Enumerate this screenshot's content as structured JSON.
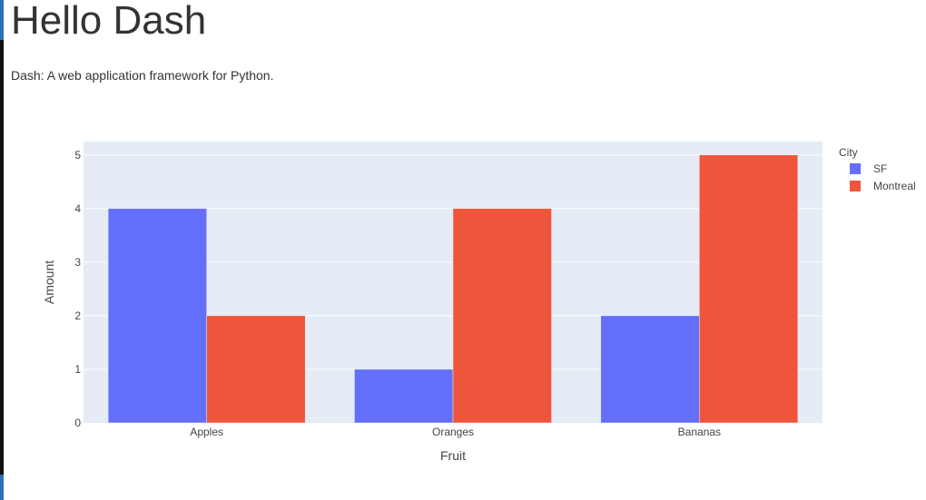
{
  "header": {
    "title": "Hello Dash",
    "description": "Dash: A web application framework for Python."
  },
  "chart_data": {
    "type": "bar",
    "categories": [
      "Apples",
      "Oranges",
      "Bananas"
    ],
    "series": [
      {
        "name": "SF",
        "values": [
          4,
          1,
          2
        ],
        "color": "#636efa"
      },
      {
        "name": "Montreal",
        "values": [
          2,
          4,
          5
        ],
        "color": "#ef553b"
      }
    ],
    "xlabel": "Fruit",
    "ylabel": "Amount",
    "ylim": [
      0,
      5.25
    ],
    "yticks": [
      0,
      1,
      2,
      3,
      4,
      5
    ],
    "legend_title": "City",
    "legend_position": "top-right",
    "grid": true,
    "plot_background": "#e5ecf6"
  }
}
